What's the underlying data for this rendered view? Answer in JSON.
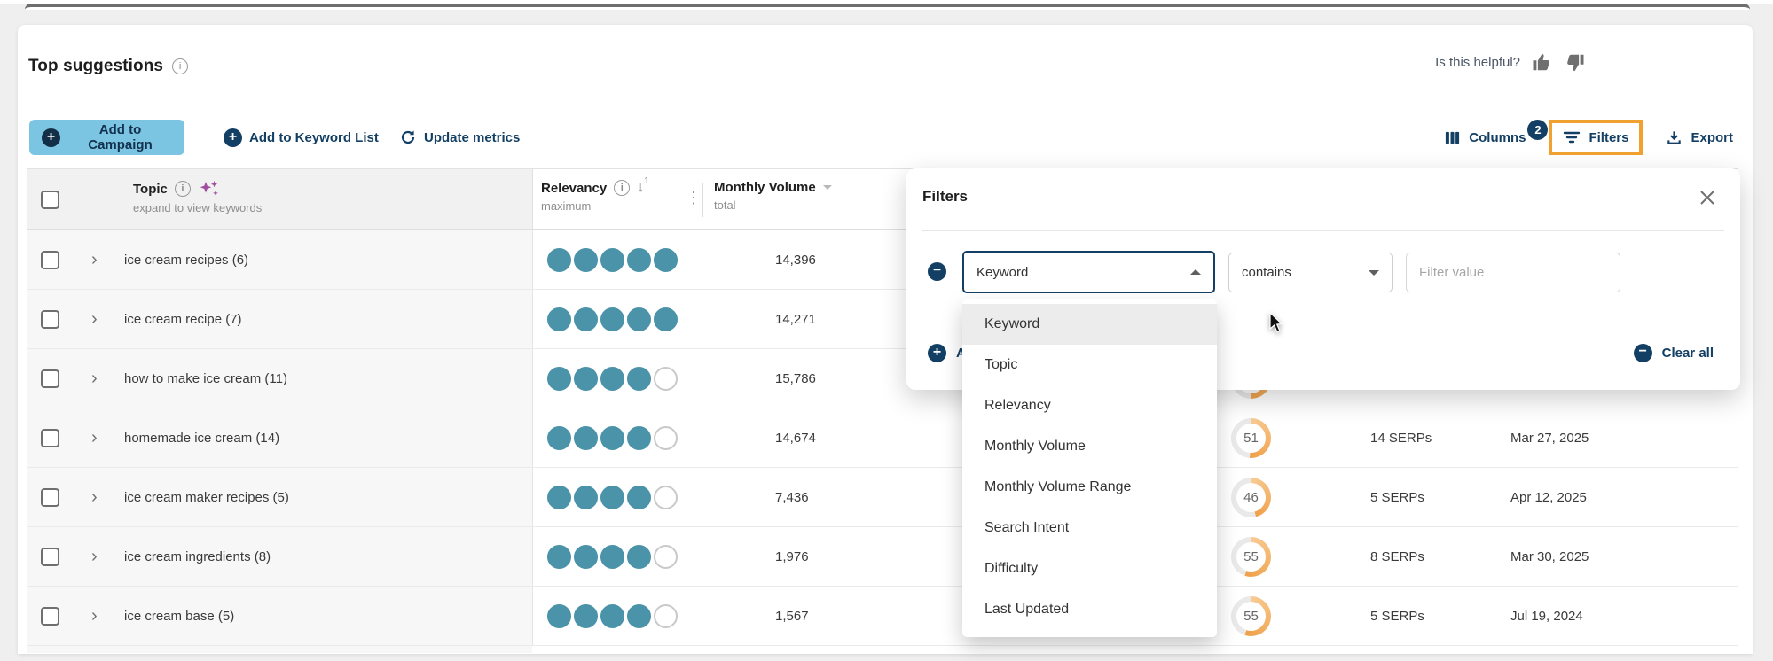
{
  "header": {
    "title": "Top suggestions",
    "helpful_label": "Is this helpful?"
  },
  "toolbar": {
    "add_to_campaign": "Add to Campaign",
    "add_to_keyword_list": "Add to Keyword List",
    "update_metrics": "Update metrics",
    "columns_label": "Columns",
    "filters_label": "Filters",
    "filters_badge_count": "2",
    "export_label": "Export"
  },
  "table": {
    "header": {
      "topic_label": "Topic",
      "topic_subtitle": "expand to view keywords",
      "relevancy_label": "Relevancy",
      "relevancy_subtitle": "maximum",
      "sort_order": "1",
      "volume_label": "Monthly Volume",
      "volume_subtitle": "total"
    },
    "rows": [
      {
        "topic": "ice cream recipes (6)",
        "relevancy": 5,
        "volume": "14,396",
        "difficulty": null,
        "ring": false,
        "serps": null,
        "updated": null
      },
      {
        "topic": "ice cream recipe (7)",
        "relevancy": 5,
        "volume": "14,271",
        "difficulty": null,
        "ring": false,
        "serps": null,
        "updated": null
      },
      {
        "topic": "how to make ice cream (11)",
        "relevancy": 4,
        "volume": "15,786",
        "difficulty": null,
        "ring": true,
        "serps": null,
        "updated": null
      },
      {
        "topic": "homemade ice cream (14)",
        "relevancy": 4,
        "volume": "14,674",
        "difficulty": 51,
        "ring": true,
        "serps": "14 SERPs",
        "updated": "Mar 27, 2025"
      },
      {
        "topic": "ice cream maker recipes (5)",
        "relevancy": 4,
        "volume": "7,436",
        "difficulty": 46,
        "ring": true,
        "serps": "5 SERPs",
        "updated": "Apr 12, 2025"
      },
      {
        "topic": "ice cream ingredients (8)",
        "relevancy": 4,
        "volume": "1,976",
        "difficulty": 55,
        "ring": true,
        "serps": "8 SERPs",
        "updated": "Mar 30, 2025"
      },
      {
        "topic": "ice cream base (5)",
        "relevancy": 4,
        "volume": "1,567",
        "difficulty": 55,
        "ring": true,
        "serps": "5 SERPs",
        "updated": "Jul 19, 2024"
      }
    ]
  },
  "filters_popup": {
    "title": "Filters",
    "selected_field": "Keyword",
    "operator": "contains",
    "value_placeholder": "Filter value",
    "add_filter_label": "Add filter",
    "clear_all_label": "Clear all",
    "options": [
      "Keyword",
      "Topic",
      "Relevancy",
      "Monthly Volume",
      "Monthly Volume Range",
      "Search Intent",
      "Difficulty",
      "Last Updated"
    ],
    "highlighted_option": "Keyword"
  },
  "colors": {
    "navy": "#123f63",
    "button_blue": "#7cc5e2",
    "teal_dot": "#4a93a9",
    "annotation_orange": "#f0a12f",
    "ring_orange": "#efa049"
  }
}
